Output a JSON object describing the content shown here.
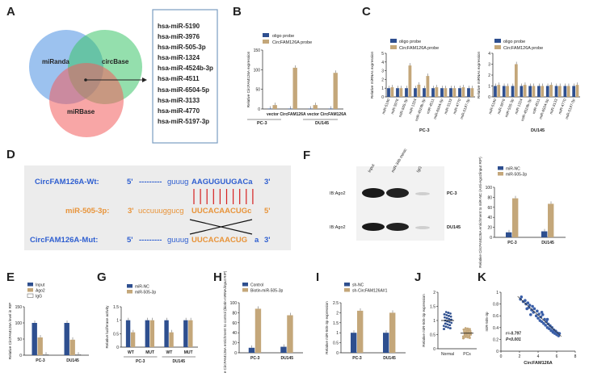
{
  "panels": {
    "A": "A",
    "B": "B",
    "C": "C",
    "D": "D",
    "E": "E",
    "F": "F",
    "G": "G",
    "H": "H",
    "I": "I",
    "J": "J",
    "K": "K"
  },
  "venn": {
    "sets": [
      "miRanda",
      "circBase",
      "miRBase"
    ],
    "colors": [
      "#4a90e2",
      "#3cc46a",
      "#f25c5c"
    ],
    "list": [
      "hsa-miR-5190",
      "hsa-miR-3976",
      "hsa-miR-505-3p",
      "hsa-miR-1324",
      "hsa-miR-4524b-3p",
      "hsa-miR-4511",
      "hsa-miR-6504-5p",
      "hsa-miR-3133",
      "hsa-miR-4770",
      "hsa-miR-5197-3p"
    ]
  },
  "colors": {
    "blue": "#2e4f8f",
    "tan": "#c4a77a",
    "white": "#ffffff",
    "wt": "#2f5fd0",
    "mir": "#e8943a",
    "line": "#d62020"
  },
  "chart_data": [
    {
      "panel": "B",
      "type": "bar",
      "ylabel": "Relative CircFAM126A expression",
      "ylim": [
        0,
        150
      ],
      "yticks": [
        0,
        50,
        100,
        150
      ],
      "categories": [
        "vector",
        "CircFAM126A",
        "vector",
        "CircFAM126A"
      ],
      "groups": [
        "PC-3",
        "DU145"
      ],
      "series": [
        {
          "name": "oligo probe",
          "values": [
            1,
            1,
            1,
            1
          ]
        },
        {
          "name": "CircFAM126A probe",
          "values": [
            10,
            105,
            10,
            92
          ]
        }
      ]
    },
    {
      "panel": "C1",
      "type": "bar",
      "ylabel": "Relative miRNAs expression",
      "ylim": [
        0,
        5
      ],
      "yticks": [
        0,
        1,
        2,
        3,
        4,
        5
      ],
      "group": "PC-3",
      "categories": [
        "miR-5190",
        "miR-3976",
        "miR-505-3p",
        "miR-1324",
        "miR-4524b-3p",
        "miR-4511",
        "miR-6504-5p",
        "miR-3133",
        "miR-4770",
        "miR-5197-3p"
      ],
      "series": [
        {
          "name": "oligo probe",
          "values": [
            1,
            1,
            1,
            1,
            1,
            1,
            1,
            1,
            1,
            1
          ]
        },
        {
          "name": "CircFAM126A probe",
          "values": [
            1.1,
            1.0,
            3.6,
            1.4,
            2.4,
            1.1,
            1.0,
            1.0,
            1.1,
            1.0
          ]
        }
      ]
    },
    {
      "panel": "C2",
      "type": "bar",
      "ylabel": "Relative miRNAs expression",
      "ylim": [
        0,
        4
      ],
      "yticks": [
        0,
        1,
        2,
        3,
        4
      ],
      "group": "DU145",
      "categories": [
        "miR-5190",
        "miR-3976",
        "miR-505-3p",
        "miR-1324",
        "miR-4524b-3p",
        "miR-4511",
        "miR-6504-5p",
        "miR-3133",
        "miR-4770",
        "miR-5197-3p"
      ],
      "series": [
        {
          "name": "oligo probe",
          "values": [
            1,
            1,
            1,
            1,
            1,
            1,
            1,
            1,
            1,
            1
          ]
        },
        {
          "name": "CircFAM126A probe",
          "values": [
            1.1,
            1.0,
            3.0,
            1.1,
            1.0,
            1.0,
            1.1,
            1.0,
            1.0,
            1.1
          ]
        }
      ]
    },
    {
      "panel": "E",
      "type": "bar",
      "ylabel": "Relative CircFAM126A level in RIP",
      "ylim": [
        0,
        150
      ],
      "yticks": [
        0,
        50,
        100,
        150
      ],
      "categories": [
        "PC-3",
        "DU145"
      ],
      "series": [
        {
          "name": "Input",
          "values": [
            100,
            100
          ]
        },
        {
          "name": "Ago2",
          "values": [
            55,
            48
          ]
        },
        {
          "name": "IgG",
          "values": [
            2,
            2
          ]
        }
      ]
    },
    {
      "panel": "F",
      "type": "bar",
      "ylabel": "Relative CircFAM126A enrichment to miR-NC (Anti-Ago2/input RIP)",
      "ylim": [
        0,
        100
      ],
      "yticks": [
        0,
        20,
        40,
        60,
        80,
        100
      ],
      "categories": [
        "PC-3",
        "DU145"
      ],
      "series": [
        {
          "name": "miR-NC",
          "values": [
            10,
            12
          ]
        },
        {
          "name": "miR-505-3p",
          "values": [
            78,
            67
          ]
        }
      ]
    },
    {
      "panel": "G",
      "type": "bar",
      "ylabel": "Relative luciferase activity",
      "ylim": [
        0,
        1.5
      ],
      "yticks": [
        0.0,
        0.5,
        1.0,
        1.5
      ],
      "categories": [
        "WT",
        "MUT",
        "WT",
        "MUT"
      ],
      "groups": [
        "PC-3",
        "DU145"
      ],
      "series": [
        {
          "name": "miR-NC",
          "values": [
            1.0,
            1.0,
            1.0,
            1.0
          ]
        },
        {
          "name": "miR-505-3p",
          "values": [
            0.55,
            1.0,
            0.55,
            1.0
          ]
        }
      ]
    },
    {
      "panel": "H",
      "type": "bar",
      "ylabel": "Relative CircFAM126A enrichment to control (biotin-mRNA/input RIP)",
      "ylim": [
        0,
        100
      ],
      "yticks": [
        0,
        20,
        40,
        60,
        80,
        100
      ],
      "categories": [
        "PC-3",
        "DU145"
      ],
      "series": [
        {
          "name": "Control",
          "values": [
            10,
            12
          ]
        },
        {
          "name": "Biotin-miR-505-3p",
          "values": [
            88,
            75
          ]
        }
      ]
    },
    {
      "panel": "I",
      "type": "bar",
      "ylabel": "Relative miR-505-3p expression",
      "ylim": [
        0,
        2.5
      ],
      "yticks": [
        0.0,
        0.5,
        1.0,
        1.5,
        2.0,
        2.5
      ],
      "categories": [
        "PC-3",
        "DU145"
      ],
      "series": [
        {
          "name": "sh-NC",
          "values": [
            1.0,
            1.0
          ]
        },
        {
          "name": "sh-CircFAM126A#1",
          "values": [
            2.1,
            2.0
          ]
        }
      ]
    },
    {
      "panel": "J",
      "type": "scatter",
      "ylabel": "Relative miR-505-3p expression",
      "ylim": [
        0,
        2.0
      ],
      "yticks": [
        0.0,
        0.5,
        1.0,
        1.5,
        2.0
      ],
      "categories": [
        "Normal",
        "PCs"
      ],
      "means": [
        1.0,
        0.55
      ]
    },
    {
      "panel": "K",
      "type": "scatter",
      "xlabel": "CircFAM126A",
      "ylabel": "miR-505-3p",
      "xlim": [
        0,
        8
      ],
      "ylim": [
        0,
        1.0
      ],
      "xticks": [
        0,
        2,
        4,
        6,
        8
      ],
      "yticks": [
        0.0,
        0.2,
        0.4,
        0.6,
        0.8,
        1.0
      ],
      "annotation": [
        "r=-0.797",
        "P<0.001"
      ],
      "points": [
        [
          2.1,
          0.88
        ],
        [
          2.2,
          0.92
        ],
        [
          2.4,
          0.84
        ],
        [
          2.6,
          0.86
        ],
        [
          2.7,
          0.8
        ],
        [
          2.9,
          0.82
        ],
        [
          3.0,
          0.74
        ],
        [
          3.1,
          0.78
        ],
        [
          3.3,
          0.7
        ],
        [
          3.4,
          0.76
        ],
        [
          3.5,
          0.66
        ],
        [
          3.6,
          0.72
        ],
        [
          3.8,
          0.6
        ],
        [
          3.9,
          0.68
        ],
        [
          4.0,
          0.56
        ],
        [
          4.1,
          0.63
        ],
        [
          4.2,
          0.52
        ],
        [
          4.3,
          0.58
        ],
        [
          4.4,
          0.5
        ],
        [
          4.5,
          0.62
        ],
        [
          4.6,
          0.47
        ],
        [
          4.7,
          0.54
        ],
        [
          4.8,
          0.44
        ],
        [
          4.9,
          0.5
        ],
        [
          5.0,
          0.4
        ],
        [
          5.1,
          0.46
        ],
        [
          5.2,
          0.38
        ],
        [
          5.3,
          0.43
        ],
        [
          5.4,
          0.35
        ],
        [
          5.5,
          0.4
        ],
        [
          5.6,
          0.32
        ],
        [
          5.7,
          0.36
        ],
        [
          5.8,
          0.3
        ],
        [
          5.9,
          0.34
        ],
        [
          6.0,
          0.28
        ],
        [
          6.1,
          0.31
        ],
        [
          6.2,
          0.26
        ],
        [
          6.3,
          0.3
        ],
        [
          3.2,
          0.62
        ],
        [
          4.4,
          0.66
        ],
        [
          5.0,
          0.54
        ],
        [
          2.8,
          0.72
        ]
      ]
    }
  ],
  "labels": {
    "B_legend": [
      "oligo probe",
      "CircFAM126A probe"
    ],
    "B_groups": [
      "PC-3",
      "DU145"
    ],
    "B_ylabel": "Relative CircFAM126A expression",
    "C_legend": [
      "oligo probe",
      "CircFAM126A probe"
    ],
    "C_groups": [
      "PC-3",
      "DU145"
    ],
    "C_ylabel": "Relative miRNAs expression",
    "D_wt_label": "CircFAM126A-Wt:",
    "D_wt_5": "5'",
    "D_wt_dash": "---------",
    "D_wt_lower": "guuug",
    "D_wt_upper": "AAGUGUUGACa",
    "D_wt_3": "3'",
    "D_mir_label": "miR-505-3p:",
    "D_mir_3": "3'",
    "D_mir_lower": "uccuuuggucg",
    "D_mir_upper": "UUCACAACUGc",
    "D_mir_5": "5'",
    "D_mut_label": "CircFAM126A-Mut:",
    "D_mut_5": "5'",
    "D_mut_dash": "---------",
    "D_mut_lower": "guuug",
    "D_mut_upper": "UUCACAACUG",
    "D_mut_a": "a",
    "D_mut_3": "3'",
    "F_lanes": [
      "Input",
      "miR-34b mimic",
      "IgG"
    ],
    "F_rows": [
      "IB:Ago2",
      "IB:Ago2"
    ],
    "F_cells": [
      "PC-3",
      "DU145"
    ]
  }
}
